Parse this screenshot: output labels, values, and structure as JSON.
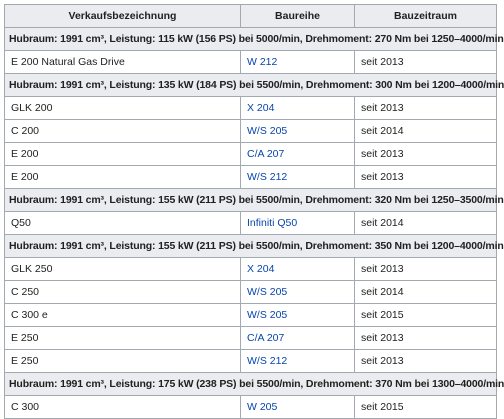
{
  "headers": [
    "Verkaufsbezeichnung",
    "Baureihe",
    "Bauzeitraum"
  ],
  "rows": [
    {
      "type": "group",
      "text": "Hubraum: 1991 cm³, Leistung: 115 kW (156 PS) bei 5000/min, Drehmoment: 270 Nm bei 1250–4000/min"
    },
    {
      "type": "data",
      "name": "E 200 Natural Gas Drive",
      "series": "W 212",
      "period": "seit 2013"
    },
    {
      "type": "group",
      "text": "Hubraum: 1991 cm³, Leistung: 135 kW (184 PS) bei 5500/min, Drehmoment: 300 Nm bei 1200–4000/min"
    },
    {
      "type": "data",
      "name": "GLK 200",
      "series": "X 204",
      "period": "seit 2013"
    },
    {
      "type": "data",
      "name": "C 200",
      "series": "W/S 205",
      "period": "seit 2014"
    },
    {
      "type": "data",
      "name": "E 200",
      "series": "C/A 207",
      "period": "seit 2013"
    },
    {
      "type": "data",
      "name": "E 200",
      "series": "W/S 212",
      "period": "seit 2013"
    },
    {
      "type": "group",
      "text": "Hubraum: 1991 cm³, Leistung: 155 kW (211 PS) bei 5500/min, Drehmoment: 320 Nm bei 1250–3500/min"
    },
    {
      "type": "data",
      "name": "Q50",
      "series": "Infiniti Q50",
      "period": "seit 2014"
    },
    {
      "type": "group",
      "text": "Hubraum: 1991 cm³, Leistung: 155 kW (211 PS) bei 5500/min, Drehmoment: 350 Nm bei 1200–4000/min"
    },
    {
      "type": "data",
      "name": "GLK 250",
      "series": "X 204",
      "period": "seit 2013"
    },
    {
      "type": "data",
      "name": "C 250",
      "series": "W/S 205",
      "period": "seit 2014"
    },
    {
      "type": "data",
      "name": "C 300 e",
      "series": "W/S 205",
      "period": "seit 2015"
    },
    {
      "type": "data",
      "name": "E 250",
      "series": "C/A 207",
      "period": "seit 2013"
    },
    {
      "type": "data",
      "name": "E 250",
      "series": "W/S 212",
      "period": "seit 2013"
    },
    {
      "type": "group",
      "text": "Hubraum: 1991 cm³, Leistung: 175 kW (238 PS) bei 5500/min, Drehmoment: 370 Nm bei 1300–4000/min"
    },
    {
      "type": "data",
      "name": "C 300",
      "series": "W 205",
      "period": "seit 2015"
    }
  ]
}
